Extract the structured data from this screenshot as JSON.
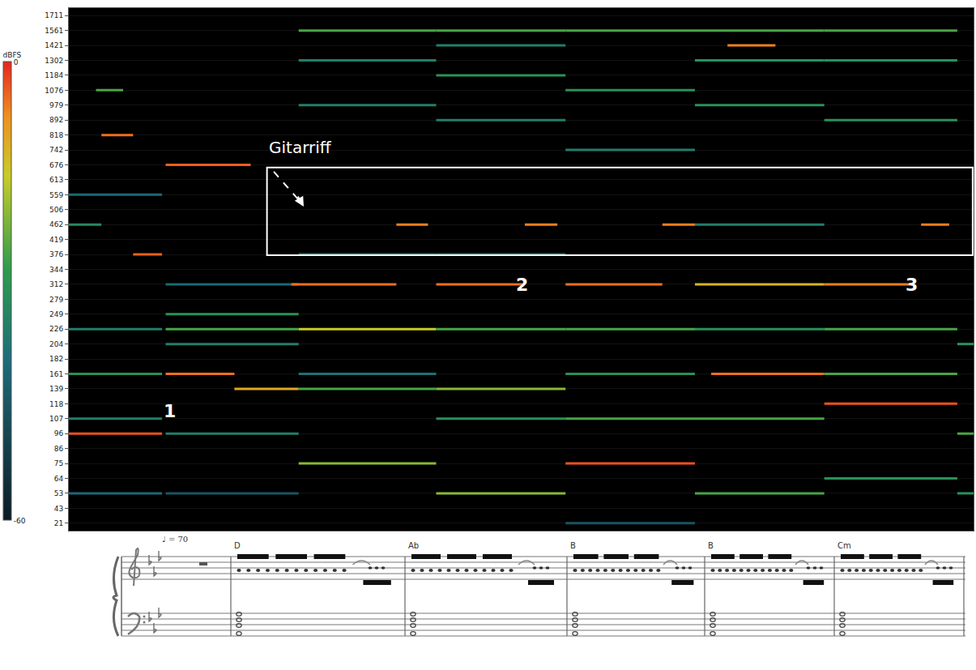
{
  "chart_data": {
    "type": "spectrogram",
    "annotations": [
      "Gitarriff",
      "1",
      "2",
      "3"
    ],
    "categories": [
      "21",
      "43",
      "53",
      "64",
      "75",
      "86",
      "96",
      "107",
      "118",
      "139",
      "161",
      "182",
      "204",
      "226",
      "249",
      "279",
      "312",
      "344",
      "376",
      "419",
      "462",
      "506",
      "559",
      "613",
      "676",
      "742",
      "818",
      "892",
      "979",
      "1076",
      "1184",
      "1302",
      "1421",
      "1561",
      "1711"
    ],
    "xlim": [
      0,
      100
    ],
    "grid": true,
    "tick_labels": "y",
    "colorbar": {
      "title": "dBFS",
      "range": [
        -60,
        0
      ],
      "ticks": [
        0,
        -60
      ]
    },
    "segments": [
      {
        "y": "818",
        "x": [
          3.6,
          7.1
        ],
        "level": -5
      },
      {
        "y": "376",
        "x": [
          7.1,
          10.3
        ],
        "level": -4
      },
      {
        "y": "96",
        "x": [
          0,
          10.3
        ],
        "level": -3
      },
      {
        "y": "53",
        "x": [
          0,
          10.3
        ],
        "level": -40
      },
      {
        "y": "161",
        "x": [
          0,
          10.3
        ],
        "level": -30
      },
      {
        "y": "226",
        "x": [
          0,
          10.3
        ],
        "level": -35
      },
      {
        "y": "462",
        "x": [
          0,
          3.6
        ],
        "level": -32
      },
      {
        "y": "559",
        "x": [
          0,
          10.3
        ],
        "level": -40
      },
      {
        "y": "107",
        "x": [
          0,
          10.3
        ],
        "level": -35
      },
      {
        "y": "1076",
        "x": [
          3.0,
          6.0
        ],
        "level": -25
      },
      {
        "y": "676",
        "x": [
          10.7,
          20.1
        ],
        "level": -4
      },
      {
        "y": "161",
        "x": [
          10.7,
          18.3
        ],
        "level": -5
      },
      {
        "y": "139",
        "x": [
          18.3,
          25.4
        ],
        "level": -10
      },
      {
        "y": "226",
        "x": [
          10.7,
          25.4
        ],
        "level": -25
      },
      {
        "y": "53",
        "x": [
          10.7,
          25.4
        ],
        "level": -45
      },
      {
        "y": "249",
        "x": [
          10.7,
          25.4
        ],
        "level": -30
      },
      {
        "y": "204",
        "x": [
          10.7,
          25.4
        ],
        "level": -35
      },
      {
        "y": "312",
        "x": [
          10.7,
          25.4
        ],
        "level": -40
      },
      {
        "y": "96",
        "x": [
          10.7,
          25.4
        ],
        "level": -35
      },
      {
        "y": "75",
        "x": [
          25.4,
          40.6
        ],
        "level": -20
      },
      {
        "y": "226",
        "x": [
          25.4,
          40.6
        ],
        "level": -15
      },
      {
        "y": "139",
        "x": [
          25.4,
          40.6
        ],
        "level": -25
      },
      {
        "y": "312",
        "x": [
          24.6,
          36.2
        ],
        "level": -5
      },
      {
        "y": "462",
        "x": [
          36.2,
          39.7
        ],
        "level": -6
      },
      {
        "y": "376",
        "x": [
          25.4,
          40.6
        ],
        "level": -35
      },
      {
        "y": "1561",
        "x": [
          25.4,
          40.6
        ],
        "level": -25
      },
      {
        "y": "1302",
        "x": [
          25.4,
          40.6
        ],
        "level": -35
      },
      {
        "y": "979",
        "x": [
          25.4,
          40.6
        ],
        "level": -35
      },
      {
        "y": "161",
        "x": [
          25.4,
          40.6
        ],
        "level": -38
      },
      {
        "y": "53",
        "x": [
          40.6,
          54.9
        ],
        "level": -20
      },
      {
        "y": "226",
        "x": [
          40.6,
          54.9
        ],
        "level": -25
      },
      {
        "y": "139",
        "x": [
          40.6,
          54.9
        ],
        "level": -20
      },
      {
        "y": "312",
        "x": [
          40.6,
          50.4
        ],
        "level": -5
      },
      {
        "y": "462",
        "x": [
          50.4,
          54.0
        ],
        "level": -6
      },
      {
        "y": "107",
        "x": [
          40.6,
          54.9
        ],
        "level": -30
      },
      {
        "y": "1561",
        "x": [
          40.6,
          54.9
        ],
        "level": -25
      },
      {
        "y": "1421",
        "x": [
          40.6,
          54.9
        ],
        "level": -35
      },
      {
        "y": "1184",
        "x": [
          40.6,
          54.9
        ],
        "level": -30
      },
      {
        "y": "892",
        "x": [
          40.6,
          54.9
        ],
        "level": -35
      },
      {
        "y": "376",
        "x": [
          40.6,
          54.9
        ],
        "level": -35
      },
      {
        "y": "75",
        "x": [
          54.9,
          69.2
        ],
        "level": -3
      },
      {
        "y": "21",
        "x": [
          54.9,
          69.2
        ],
        "level": -45
      },
      {
        "y": "107",
        "x": [
          54.9,
          69.2
        ],
        "level": -25
      },
      {
        "y": "161",
        "x": [
          54.9,
          69.2
        ],
        "level": -30
      },
      {
        "y": "312",
        "x": [
          54.9,
          65.6
        ],
        "level": -5
      },
      {
        "y": "462",
        "x": [
          65.6,
          69.2
        ],
        "level": -6
      },
      {
        "y": "226",
        "x": [
          54.9,
          69.2
        ],
        "level": -25
      },
      {
        "y": "1561",
        "x": [
          54.9,
          69.2
        ],
        "level": -25
      },
      {
        "y": "1076",
        "x": [
          54.9,
          69.2
        ],
        "level": -30
      },
      {
        "y": "742",
        "x": [
          54.9,
          69.2
        ],
        "level": -35
      },
      {
        "y": "53",
        "x": [
          69.2,
          83.5
        ],
        "level": -25
      },
      {
        "y": "161",
        "x": [
          71.0,
          83.5
        ],
        "level": -5
      },
      {
        "y": "107",
        "x": [
          69.2,
          83.5
        ],
        "level": -25
      },
      {
        "y": "312",
        "x": [
          69.2,
          83.5
        ],
        "level": -12
      },
      {
        "y": "226",
        "x": [
          69.2,
          83.5
        ],
        "level": -30
      },
      {
        "y": "1421",
        "x": [
          72.8,
          78.1
        ],
        "level": -6
      },
      {
        "y": "1302",
        "x": [
          69.2,
          83.5
        ],
        "level": -30
      },
      {
        "y": "979",
        "x": [
          69.2,
          83.5
        ],
        "level": -30
      },
      {
        "y": "1561",
        "x": [
          69.2,
          83.5
        ],
        "level": -25
      },
      {
        "y": "462",
        "x": [
          69.2,
          83.5
        ],
        "level": -35
      },
      {
        "y": "118",
        "x": [
          83.5,
          98.2
        ],
        "level": -3
      },
      {
        "y": "64",
        "x": [
          83.5,
          98.2
        ],
        "level": -30
      },
      {
        "y": "161",
        "x": [
          83.5,
          98.2
        ],
        "level": -25
      },
      {
        "y": "312",
        "x": [
          83.5,
          93.3
        ],
        "level": -6
      },
      {
        "y": "462",
        "x": [
          94.2,
          97.3
        ],
        "level": -6
      },
      {
        "y": "226",
        "x": [
          83.5,
          98.2
        ],
        "level": -25
      },
      {
        "y": "1561",
        "x": [
          83.5,
          98.2
        ],
        "level": -25
      },
      {
        "y": "1302",
        "x": [
          83.5,
          98.2
        ],
        "level": -30
      },
      {
        "y": "892",
        "x": [
          83.5,
          98.2
        ],
        "level": -30
      },
      {
        "y": "53",
        "x": [
          98.2,
          100
        ],
        "level": -30
      },
      {
        "y": "96",
        "x": [
          98.2,
          100
        ],
        "level": -25
      },
      {
        "y": "204",
        "x": [
          98.2,
          100
        ],
        "level": -30
      }
    ]
  },
  "score": {
    "tempo": {
      "label": "♩ =",
      "value": 70
    },
    "chords": [
      "D",
      "Ab",
      "B",
      "B",
      "Cm"
    ]
  }
}
